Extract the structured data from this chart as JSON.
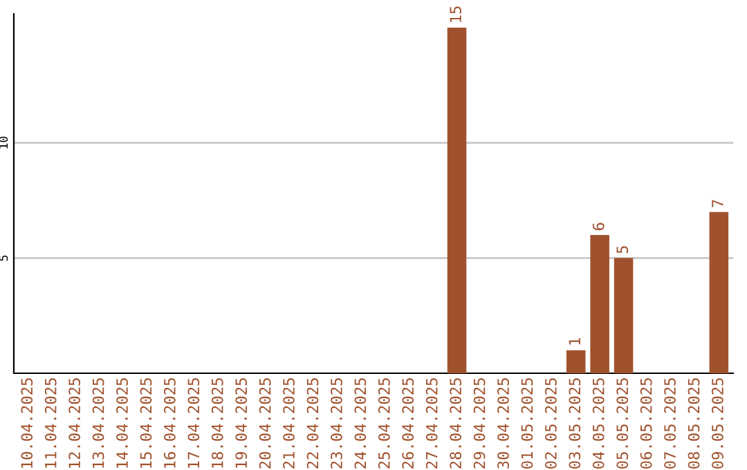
{
  "chart_data": {
    "type": "bar",
    "categories": [
      "10.04.2025",
      "11.04.2025",
      "12.04.2025",
      "13.04.2025",
      "14.04.2025",
      "15.04.2025",
      "16.04.2025",
      "17.04.2025",
      "18.04.2025",
      "19.04.2025",
      "20.04.2025",
      "21.04.2025",
      "22.04.2025",
      "23.04.2025",
      "24.04.2025",
      "25.04.2025",
      "26.04.2025",
      "27.04.2025",
      "28.04.2025",
      "29.04.2025",
      "30.04.2025",
      "01.05.2025",
      "02.05.2025",
      "03.05.2025",
      "04.05.2025",
      "05.05.2025",
      "06.05.2025",
      "07.05.2025",
      "08.05.2025",
      "09.05.2025"
    ],
    "values": [
      0,
      0,
      0,
      0,
      0,
      0,
      0,
      0,
      0,
      0,
      0,
      0,
      0,
      0,
      0,
      0,
      0,
      0,
      15,
      0,
      0,
      0,
      0,
      1,
      6,
      5,
      0,
      0,
      0,
      7
    ],
    "value_labels": [
      null,
      null,
      null,
      null,
      null,
      null,
      null,
      null,
      null,
      null,
      null,
      null,
      null,
      null,
      null,
      null,
      null,
      null,
      "15",
      null,
      null,
      null,
      null,
      "1",
      "6",
      "5",
      null,
      null,
      null,
      "7"
    ],
    "color": "#a0522d",
    "ylim": [
      0,
      15.6
    ],
    "yticks": [
      5,
      10
    ],
    "grid": "y",
    "legend": false
  }
}
